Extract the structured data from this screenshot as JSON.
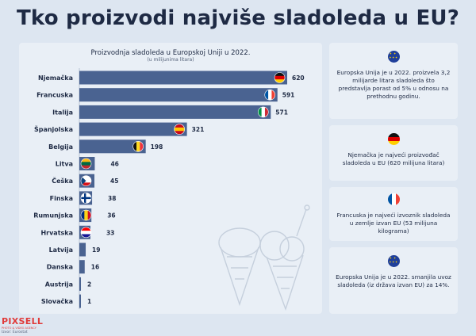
{
  "page": {
    "title": "Tko proizvodi najviše sladoleda u EU?"
  },
  "chart_data": {
    "type": "bar",
    "orientation": "horizontal",
    "title": "Proizvodnja sladoleda u Europskoj Uniji u 2022.",
    "subtitle": "(u milijunima litara)",
    "xlabel": "",
    "ylabel": "",
    "grid": false,
    "legend": "none",
    "xlim": [
      0,
      620
    ],
    "bar_color": "#4a6391",
    "categories": [
      "Njemačka",
      "Francuska",
      "Italija",
      "Španjolska",
      "Belgija",
      "Litva",
      "Češka",
      "Finska",
      "Rumunjska",
      "Hrvatska",
      "Latvija",
      "Danska",
      "Austrija",
      "Slovačka"
    ],
    "values": [
      620,
      591,
      571,
      321,
      198,
      46,
      45,
      38,
      36,
      33,
      19,
      16,
      2,
      1
    ],
    "flags": [
      "de-flag",
      "fr-flag",
      "it-flag",
      "es-flag",
      "be-flag",
      "lt-flag",
      "cz-flag",
      "fi-flag",
      "ro-flag",
      "hr-flag",
      "",
      "",
      "",
      ""
    ]
  },
  "cards": [
    {
      "icon": "eu-flag-icon",
      "text": "Europska Unija je u 2022. proizvela 3,2 milijarde litara sladoleda što predstavlja porast od 5% u odnosu na prethodnu godinu."
    },
    {
      "icon": "germany-flag-icon",
      "text": "Njemačka je najveći proizvođač sladoleda u EU (620 milijuna litara)"
    },
    {
      "icon": "france-flag-icon",
      "text": "Francuska je najveći izvoznik sladoleda u zemlje izvan EU (53 milijuna kilograma)"
    },
    {
      "icon": "eu-flag-icon",
      "text": "Europska Unija je u 2022. smanjila uvoz sladoleda (iz država izvan EU) za 14%."
    }
  ],
  "logo": {
    "name": "PIXSELL",
    "tagline": "PHOTO & VIDEO AGENCY",
    "source": "Izvor: Eurostat"
  }
}
